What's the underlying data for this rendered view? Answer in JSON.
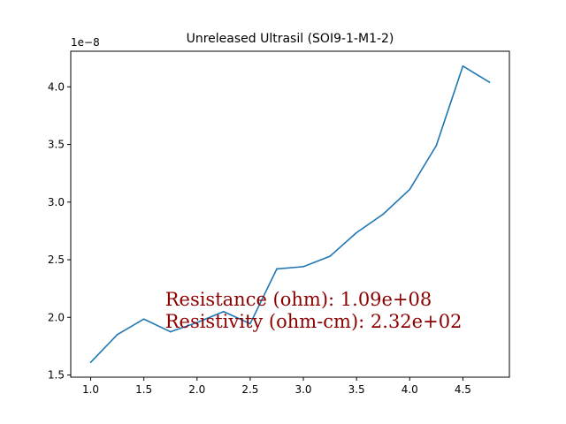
{
  "chart_data": {
    "type": "line",
    "title": "Unreleased Ultrasil (SOI9-1-M1-2)",
    "xlabel": "",
    "ylabel": "",
    "y_scale_label": "1e−8",
    "x": [
      1.0,
      1.25,
      1.5,
      1.75,
      2.0,
      2.25,
      2.5,
      2.75,
      3.0,
      3.25,
      3.5,
      3.75,
      4.0,
      4.25,
      4.5,
      4.75
    ],
    "series": [
      {
        "values": [
          1.61,
          1.85,
          1.985,
          1.875,
          1.955,
          2.05,
          1.945,
          2.42,
          2.44,
          2.53,
          2.735,
          2.895,
          3.11,
          3.49,
          4.18,
          4.04
        ],
        "color": "#1f77b4"
      }
    ],
    "xlim": [
      0.8125,
      4.9375
    ],
    "ylim": [
      1.481,
      4.309
    ],
    "xticks": [
      {
        "v": 1.0,
        "label": "1.0"
      },
      {
        "v": 1.5,
        "label": "1.5"
      },
      {
        "v": 2.0,
        "label": "2.0"
      },
      {
        "v": 2.5,
        "label": "2.5"
      },
      {
        "v": 3.0,
        "label": "3.0"
      },
      {
        "v": 3.5,
        "label": "3.5"
      },
      {
        "v": 4.0,
        "label": "4.0"
      },
      {
        "v": 4.5,
        "label": "4.5"
      }
    ],
    "yticks": [
      {
        "v": 1.5,
        "label": "1.5"
      },
      {
        "v": 2.0,
        "label": "2.0"
      },
      {
        "v": 2.5,
        "label": "2.5"
      },
      {
        "v": 3.0,
        "label": "3.0"
      },
      {
        "v": 3.5,
        "label": "3.5"
      },
      {
        "v": 4.0,
        "label": "4.0"
      }
    ],
    "grid": false,
    "annotations": [
      {
        "text": "Resistance (ohm): 1.09e+08",
        "x": 1.7,
        "y": 2.1,
        "color": "#8b0000"
      },
      {
        "text": "Resistivity (ohm-cm): 2.32e+02",
        "x": 1.7,
        "y": 1.91,
        "color": "#8b0000"
      }
    ]
  }
}
